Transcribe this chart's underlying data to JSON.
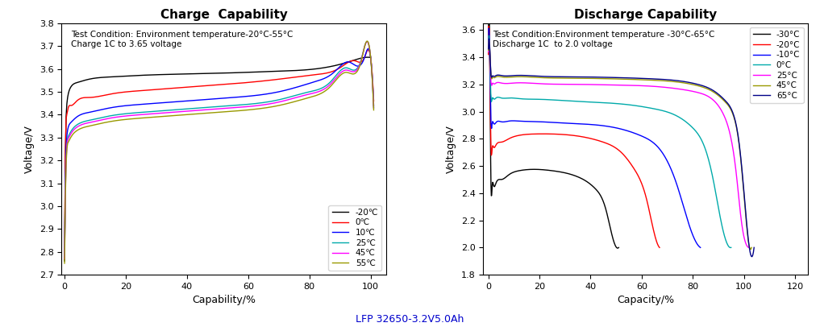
{
  "charge": {
    "title": "Charge  Capability",
    "xlabel": "Capability/%",
    "ylabel": "Voltage/V",
    "xlim": [
      -1,
      105
    ],
    "ylim": [
      2.7,
      3.8
    ],
    "annotation": "Test Condition: Environment temperature-20°C-55°C\nCharge 1C to 3.65 voltage",
    "legend_labels": [
      "-20℃",
      "0℃",
      "10℃",
      "25℃",
      "45℃",
      "55℃"
    ],
    "colors": [
      "#000000",
      "#ff0000",
      "#0000ff",
      "#00aaaa",
      "#ff00ff",
      "#999900"
    ],
    "curves": {
      "neg20": {
        "x": [
          0,
          0.3,
          0.7,
          1.2,
          2,
          4,
          8,
          15,
          25,
          40,
          55,
          70,
          82,
          90,
          95,
          98,
          100
        ],
        "y": [
          2.76,
          3.26,
          3.44,
          3.49,
          3.52,
          3.54,
          3.555,
          3.565,
          3.572,
          3.578,
          3.583,
          3.59,
          3.6,
          3.62,
          3.64,
          3.65,
          3.65
        ]
      },
      "zero": {
        "x": [
          0,
          0.3,
          0.7,
          1.2,
          2,
          4,
          8,
          15,
          25,
          40,
          55,
          70,
          82,
          90,
          95,
          98,
          100,
          101
        ],
        "y": [
          2.78,
          3.28,
          3.4,
          3.43,
          3.44,
          3.46,
          3.475,
          3.49,
          3.505,
          3.52,
          3.535,
          3.555,
          3.575,
          3.605,
          3.635,
          3.65,
          3.65,
          3.46
        ]
      },
      "ten": {
        "x": [
          0,
          0.3,
          0.7,
          1.2,
          2,
          4,
          8,
          15,
          25,
          40,
          55,
          70,
          82,
          88,
          93,
          98,
          100,
          101
        ],
        "y": [
          2.78,
          3.15,
          3.3,
          3.345,
          3.365,
          3.39,
          3.41,
          3.43,
          3.445,
          3.46,
          3.475,
          3.5,
          3.545,
          3.585,
          3.63,
          3.65,
          3.65,
          3.44
        ]
      },
      "twentyfive": {
        "x": [
          0,
          0.3,
          0.7,
          1.2,
          2,
          4,
          8,
          15,
          25,
          40,
          55,
          70,
          80,
          87,
          92,
          97,
          100,
          101
        ],
        "y": [
          2.78,
          3.1,
          3.265,
          3.305,
          3.325,
          3.355,
          3.375,
          3.395,
          3.41,
          3.425,
          3.44,
          3.465,
          3.5,
          3.545,
          3.605,
          3.645,
          3.65,
          3.43
        ]
      },
      "fortyfive": {
        "x": [
          0,
          0.3,
          0.7,
          1.2,
          2,
          4,
          8,
          15,
          25,
          40,
          55,
          70,
          80,
          87,
          92,
          97,
          100,
          101
        ],
        "y": [
          2.77,
          3.09,
          3.255,
          3.295,
          3.315,
          3.345,
          3.365,
          3.385,
          3.4,
          3.415,
          3.43,
          3.455,
          3.49,
          3.535,
          3.595,
          3.642,
          3.65,
          3.43
        ]
      },
      "fiftyfive": {
        "x": [
          0,
          0.3,
          0.7,
          1.2,
          2,
          4,
          8,
          15,
          25,
          40,
          55,
          70,
          80,
          87,
          92,
          97,
          100,
          101
        ],
        "y": [
          2.75,
          3.07,
          3.24,
          3.28,
          3.3,
          3.33,
          3.35,
          3.37,
          3.385,
          3.4,
          3.415,
          3.44,
          3.475,
          3.525,
          3.585,
          3.638,
          3.65,
          3.42
        ]
      }
    }
  },
  "discharge": {
    "title": "Discharge Capability",
    "xlabel": "Capacity/%",
    "ylabel": "Voltage/V",
    "xlim": [
      -2,
      125
    ],
    "ylim": [
      1.8,
      3.65
    ],
    "annotation": "Test Condition:Environment temperature -30°C-65°C\nDischarge 1C  to 2.0 voltage",
    "legend_labels": [
      "-30°C",
      "-20°C",
      "-10°C",
      "0°C",
      "25°C",
      "45°C",
      "65°C"
    ],
    "colors": [
      "#000000",
      "#ff0000",
      "#0000ff",
      "#00aaaa",
      "#ff00ff",
      "#999900",
      "#000088"
    ],
    "curves": {
      "neg30": {
        "x": [
          0,
          0.5,
          1.0,
          1.5,
          2,
          3,
          5,
          8,
          12,
          18,
          25,
          35,
          42,
          46,
          49,
          51
        ],
        "y": [
          3.5,
          3.51,
          2.48,
          2.455,
          2.46,
          2.475,
          2.5,
          2.535,
          2.565,
          2.575,
          2.565,
          2.52,
          2.43,
          2.28,
          2.05,
          2.0
        ]
      },
      "neg20": {
        "x": [
          0,
          0.5,
          1.0,
          1.5,
          2,
          3,
          5,
          8,
          12,
          18,
          25,
          35,
          45,
          52,
          57,
          62,
          65,
          67
        ],
        "y": [
          3.42,
          3.44,
          2.75,
          2.73,
          2.74,
          2.755,
          2.775,
          2.8,
          2.825,
          2.835,
          2.835,
          2.82,
          2.775,
          2.7,
          2.58,
          2.35,
          2.1,
          2.0
        ]
      },
      "neg10": {
        "x": [
          0,
          0.5,
          1.0,
          1.5,
          2,
          3,
          5,
          8,
          12,
          20,
          30,
          40,
          50,
          60,
          68,
          74,
          78,
          81,
          83
        ],
        "y": [
          3.44,
          3.46,
          2.93,
          2.915,
          2.915,
          2.92,
          2.925,
          2.93,
          2.93,
          2.925,
          2.915,
          2.905,
          2.88,
          2.82,
          2.7,
          2.45,
          2.2,
          2.05,
          2.0
        ]
      },
      "zero": {
        "x": [
          0,
          0.5,
          1.0,
          1.5,
          2,
          3,
          5,
          8,
          12,
          20,
          30,
          40,
          55,
          65,
          73,
          80,
          85,
          88,
          91,
          93,
          95
        ],
        "y": [
          3.44,
          3.46,
          3.11,
          3.095,
          3.095,
          3.1,
          3.1,
          3.1,
          3.095,
          3.09,
          3.08,
          3.07,
          3.05,
          3.02,
          2.975,
          2.88,
          2.72,
          2.5,
          2.2,
          2.05,
          2.0
        ]
      },
      "twentyfive": {
        "x": [
          0,
          0.5,
          1.0,
          1.5,
          2,
          3,
          5,
          10,
          20,
          35,
          50,
          65,
          75,
          82,
          88,
          92,
          95,
          97,
          99,
          101,
          102
        ],
        "y": [
          3.44,
          3.46,
          3.22,
          3.205,
          3.205,
          3.21,
          3.21,
          3.21,
          3.205,
          3.2,
          3.195,
          3.185,
          3.165,
          3.14,
          3.085,
          2.98,
          2.8,
          2.55,
          2.2,
          2.02,
          2.0
        ]
      },
      "fortyfive": {
        "x": [
          0,
          0.5,
          1.0,
          1.5,
          2,
          3,
          5,
          10,
          20,
          35,
          50,
          65,
          75,
          82,
          88,
          93,
          96,
          98,
          100,
          102,
          103
        ],
        "y": [
          3.45,
          3.47,
          3.265,
          3.25,
          3.25,
          3.255,
          3.255,
          3.255,
          3.25,
          3.245,
          3.24,
          3.23,
          3.215,
          3.19,
          3.145,
          3.065,
          2.965,
          2.78,
          2.4,
          2.02,
          2.0
        ]
      },
      "sixtyfive": {
        "x": [
          0,
          0.5,
          1.0,
          1.5,
          2,
          3,
          5,
          10,
          20,
          35,
          50,
          65,
          75,
          82,
          88,
          93,
          96,
          98,
          100,
          102,
          104
        ],
        "y": [
          3.46,
          3.48,
          3.275,
          3.26,
          3.26,
          3.265,
          3.265,
          3.265,
          3.26,
          3.255,
          3.25,
          3.24,
          3.225,
          3.2,
          3.155,
          3.075,
          2.975,
          2.79,
          2.42,
          2.02,
          2.0
        ]
      }
    }
  },
  "footer": "LFP 32650-3.2V5.0Ah",
  "footer_color": "#0000cc"
}
